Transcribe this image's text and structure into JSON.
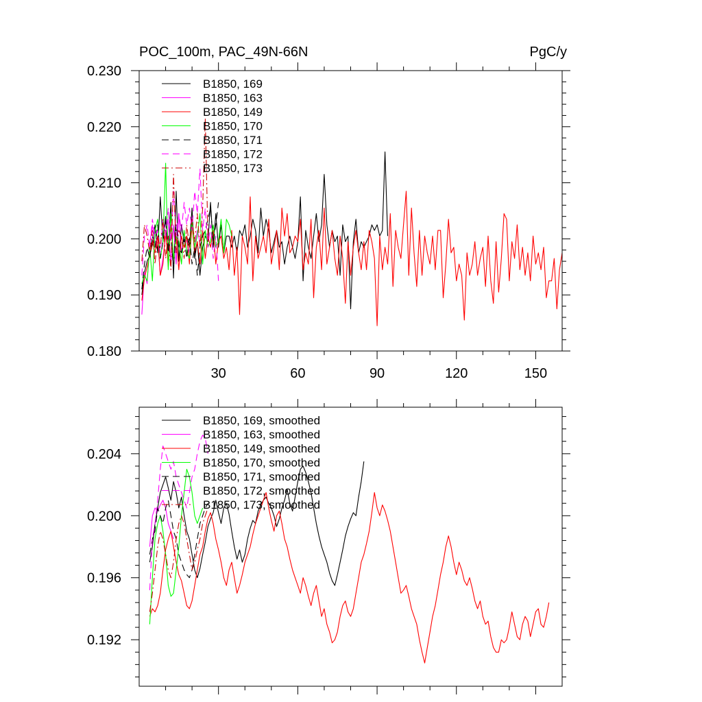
{
  "chart_data": [
    {
      "type": "line",
      "title": "POC_100m, PAC_49N-66N",
      "units": "PgC/y",
      "xlim": [
        0,
        160
      ],
      "ylim": [
        0.18,
        0.23
      ],
      "xticks": [
        30,
        60,
        90,
        120,
        150
      ],
      "yticks": [
        0.18,
        0.19,
        0.2,
        0.21,
        0.22,
        0.23
      ],
      "ytick_labels": [
        "0.180",
        "0.190",
        "0.200",
        "0.210",
        "0.220",
        "0.230"
      ],
      "legend_position": "top-left",
      "series": [
        {
          "name": "B1850, 169",
          "color": "#000000",
          "dash": "solid",
          "x0": 1,
          "values": [
            0.19,
            0.194,
            0.196,
            0.197,
            0.199,
            0.2025,
            0.1975,
            0.2075,
            0.1995,
            0.204,
            0.198,
            0.2065,
            0.193,
            0.2085,
            0.196,
            0.2025,
            0.1995,
            0.2005,
            0.1985,
            0.2055,
            0.1965,
            0.1995,
            0.1935,
            0.1985,
            0.2005,
            0.1995,
            0.2065,
            0.1985,
            0.2045,
            0.1985,
            0.2025,
            0.1975,
            0.2005,
            0.2005,
            0.1985,
            0.2005,
            0.1975,
            0.2015,
            0.2005,
            0.2025,
            0.1985,
            0.2005,
            0.2035,
            0.2015,
            0.1975,
            0.2055,
            0.2005,
            0.2035,
            0.2015,
            0.1975,
            0.1995,
            0.2015,
            0.1985,
            0.1995,
            0.1955,
            0.1985,
            0.2005,
            0.1985,
            0.1965,
            0.1995,
            0.2075,
            0.1925,
            0.2015,
            0.1985,
            0.1965,
            0.2005,
            0.2045,
            0.1995,
            0.2025,
            0.2115,
            0.2025,
            0.1985,
            0.2015,
            0.1995,
            0.2005,
            0.1935,
            0.2025,
            0.1995,
            0.2005,
            0.1875,
            0.1995,
            0.2035,
            0.1975,
            0.1995,
            0.1985,
            0.1995,
            0.2005,
            0.2025,
            0.2015,
            0.2025,
            0.2005,
            0.2015,
            0.2155,
            0.2005
          ]
        },
        {
          "name": "B1850, 163",
          "color": "#ff00ff",
          "dash": "solid",
          "x0": 1,
          "values": [
            0.1865,
            0.194,
            0.192,
            0.199,
            0.2025,
            0.1985,
            0.2005,
            0.1935,
            0.1965,
            0.2005,
            0.2035,
            0.1955,
            0.2025,
            0.1955,
            0.2045,
            0.1975,
            0.2005,
            0.1995,
            0.1975,
            0.2025,
            0.1985,
            0.2015,
            0.1995,
            0.2005
          ]
        },
        {
          "name": "B1850, 149",
          "color": "#ff0000",
          "dash": "solid",
          "x0": 1,
          "values": [
            0.189,
            0.193,
            0.195,
            0.197,
            0.1995,
            0.1975,
            0.2005,
            0.1935,
            0.1955,
            0.2015,
            0.195,
            0.2025,
            0.1965,
            0.2005,
            0.1945,
            0.2005,
            0.1985,
            0.2005,
            0.1955,
            0.2025,
            0.1975,
            0.1995,
            0.1955,
            0.2015,
            0.1965,
            0.2005,
            0.1985,
            0.2015,
            0.1955,
            0.1995,
            0.2005,
            0.1965,
            0.1985,
            0.1945,
            0.2015,
            0.1935,
            0.1985,
            0.1865,
            0.2005,
            0.1985,
            0.1955,
            0.2075,
            0.1925,
            0.2005,
            0.1965,
            0.1985,
            0.2005,
            0.1975,
            0.2035,
            0.1955,
            0.1985,
            0.2015,
            0.1945,
            0.2055,
            0.2005,
            0.2045,
            0.1975,
            0.1985,
            0.2005,
            0.1995,
            0.2035,
            0.1945,
            0.1975,
            0.1955,
            0.2035,
            0.1895,
            0.1985,
            0.2015,
            0.1945,
            0.2055,
            0.1955,
            0.1985,
            0.2015,
            0.1965,
            0.1935,
            0.2005,
            0.1965,
            0.1885,
            0.1995,
            0.1935,
            0.1985,
            0.2015,
            0.1975,
            0.1945,
            0.1995,
            0.1945,
            0.2015,
            0.1995,
            0.1965,
            0.1845,
            0.2005,
            0.1945,
            0.1985,
            0.1955,
            0.2045,
            0.1915,
            0.2015,
            0.1985,
            0.1965,
            0.2025,
            0.2085,
            0.1935,
            0.2055,
            0.1975,
            0.1915,
            0.2015,
            0.1935,
            0.2005,
            0.1975,
            0.1955,
            0.2005,
            0.1945,
            0.2015,
            0.2015,
            0.1895,
            0.1955,
            0.2035,
            0.1975,
            0.1985,
            0.1925,
            0.1955,
            0.1935,
            0.1855,
            0.1975,
            0.1935,
            0.1955,
            0.1995,
            0.1935,
            0.1965,
            0.1985,
            0.1915,
            0.2005,
            0.1925,
            0.1885,
            0.1995,
            0.1905,
            0.1965,
            0.2045,
            0.2035,
            0.1925,
            0.1995,
            0.1965,
            0.2025,
            0.1945,
            0.1985,
            0.1935,
            0.1975,
            0.1925,
            0.2005,
            0.1955,
            0.1975,
            0.1945,
            0.1985,
            0.1895,
            0.1925,
            0.1925,
            0.1965,
            0.1875,
            0.1945,
            0.1975,
            0.1985,
            0.1935,
            0.1965,
            0.2005
          ]
        },
        {
          "name": "B1850, 170",
          "color": "#00ff00",
          "dash": "solid",
          "x0": 1,
          "values": [
            0.192,
            0.1935,
            0.1925,
            0.1985,
            0.1925,
            0.2015,
            0.2035,
            0.1965,
            0.1995,
            0.2135,
            0.1945,
            0.2045,
            0.1965,
            0.2005,
            0.1995,
            0.1955,
            0.2015,
            0.1975,
            0.1965,
            0.2035,
            0.1985,
            0.2005,
            0.2045,
            0.1955,
            0.2015,
            0.1985,
            0.1995,
            0.2025,
            0.1985,
            0.1995,
            0.2035,
            0.1975,
            0.2035,
            0.2025,
            0.2005
          ]
        },
        {
          "name": "B1850, 171",
          "color": "#000000",
          "dash": "dashed",
          "x0": 1,
          "values": [
            0.191,
            0.1955,
            0.1985,
            0.1965,
            0.2005,
            0.1985,
            0.2025,
            0.1965,
            0.1995,
            0.2035,
            0.1975,
            0.2005,
            0.1945,
            0.2025,
            0.1985,
            0.1975,
            0.2005,
            0.1965,
            0.2005,
            0.1955,
            0.1985,
            0.1935,
            0.1985,
            0.2005,
            0.2015,
            0.2035,
            0.2055,
            0.1995,
            0.2025,
            0.2065
          ]
        },
        {
          "name": "B1850, 172",
          "color": "#ff00ff",
          "dash": "dashed",
          "x0": 1,
          "values": [
            0.1935,
            0.2005,
            0.2025,
            0.1985,
            0.2035,
            0.2005,
            0.2015,
            0.1975,
            0.2035,
            0.2005,
            0.2055,
            0.1995,
            0.2085,
            0.2005,
            0.2045,
            0.2015,
            0.2065,
            0.2025,
            0.2055,
            0.2015,
            0.2085,
            0.2045,
            0.2125,
            0.2015,
            0.2055,
            0.1985,
            0.2025,
            0.1965,
            0.2005,
            0.1925
          ]
        },
        {
          "name": "B1850, 173",
          "color": "#cc0000",
          "dash": "dashdot",
          "x0": 1,
          "values": [
            0.196,
            0.2025,
            0.2005,
            0.1975,
            0.2015,
            0.1955,
            0.2005,
            0.1985,
            0.2035,
            0.1965,
            0.2005,
            0.1945,
            0.2115,
            0.1975,
            0.2015,
            0.2005,
            0.1965,
            0.2025,
            0.1985,
            0.2035,
            0.1995,
            0.2045,
            0.1985,
            0.2055,
            0.2215,
            0.2005
          ]
        }
      ]
    },
    {
      "type": "line",
      "title": "",
      "xlim": [
        0,
        160
      ],
      "ylim": [
        0.189,
        0.207
      ],
      "xticks": [
        30,
        60,
        90,
        120,
        150
      ],
      "yticks": [
        0.192,
        0.196,
        0.2,
        0.204
      ],
      "ytick_labels": [
        "0.192",
        "0.196",
        "0.200",
        "0.204"
      ],
      "legend_position": "top-left",
      "series": [
        {
          "name": "B1850, 169, smoothed",
          "color": "#000000",
          "dash": "solid",
          "x0": 4,
          "values": [
            0.197,
            0.198,
            0.1995,
            0.2005,
            0.2015,
            0.202,
            0.2025,
            0.2018,
            0.201,
            0.2022,
            0.2015,
            0.2005,
            0.2012,
            0.2,
            0.199,
            0.1985,
            0.1975,
            0.1965,
            0.196,
            0.1966,
            0.1975,
            0.1983,
            0.1993,
            0.1998,
            0.2002,
            0.201,
            0.2002,
            0.1995,
            0.2005,
            0.2008,
            0.2001,
            0.199,
            0.198,
            0.1972,
            0.1978,
            0.197,
            0.1975,
            0.1985,
            0.1992,
            0.1997,
            0.1995,
            0.2003,
            0.2007,
            0.201,
            0.2012,
            0.2008,
            0.2005,
            0.2,
            0.1993,
            0.1998,
            0.2005,
            0.201,
            0.2017,
            0.2008,
            0.2003,
            0.2012,
            0.2022,
            0.203,
            0.2032,
            0.2028,
            0.2022,
            0.2015,
            0.2005,
            0.1995,
            0.1987,
            0.198,
            0.1975,
            0.197,
            0.1963,
            0.1958,
            0.1955,
            0.1962,
            0.197,
            0.1978,
            0.1987,
            0.1993,
            0.1998,
            0.2002,
            0.2,
            0.2012,
            0.2022,
            0.2035
          ]
        },
        {
          "name": "B1850, 163, smoothed",
          "color": "#ff00ff",
          "dash": "solid",
          "x0": 4,
          "values": [
            0.198,
            0.2,
            0.2005,
            0.2003,
            0.2007,
            0.201,
            0.2005,
            0.1995,
            0.199,
            0.1985
          ]
        },
        {
          "name": "B1850, 149, smoothed",
          "color": "#ff0000",
          "dash": "solid",
          "x0": 4,
          "values": [
            0.1935,
            0.194,
            0.1938,
            0.1942,
            0.195,
            0.1965,
            0.1978,
            0.1985,
            0.199,
            0.198,
            0.197,
            0.1962,
            0.1958,
            0.195,
            0.1942,
            0.194,
            0.1945,
            0.1955,
            0.1965,
            0.1975,
            0.198,
            0.199,
            0.1998,
            0.2002,
            0.1995,
            0.1985,
            0.1978,
            0.197,
            0.196,
            0.1955,
            0.1965,
            0.197,
            0.196,
            0.195,
            0.1955,
            0.1962,
            0.197,
            0.1975,
            0.198,
            0.1988,
            0.1995,
            0.2,
            0.2005,
            0.201,
            0.2015,
            0.2005,
            0.1997,
            0.199,
            0.2,
            0.2003,
            0.1995,
            0.1985,
            0.198,
            0.1972,
            0.1965,
            0.196,
            0.1955,
            0.195,
            0.196,
            0.1955,
            0.1948,
            0.1942,
            0.195,
            0.1955,
            0.1945,
            0.1935,
            0.194,
            0.193,
            0.1925,
            0.1918,
            0.192,
            0.1925,
            0.1935,
            0.1942,
            0.1945,
            0.1938,
            0.1935,
            0.194,
            0.195,
            0.196,
            0.197,
            0.1975,
            0.1982,
            0.199,
            0.2002,
            0.2015,
            0.2005,
            0.2,
            0.2007,
            0.2003,
            0.1997,
            0.199,
            0.198,
            0.197,
            0.196,
            0.195,
            0.1952,
            0.1955,
            0.1948,
            0.194,
            0.1935,
            0.193,
            0.192,
            0.1912,
            0.1905,
            0.1915,
            0.1925,
            0.1935,
            0.1942,
            0.1952,
            0.1962,
            0.197,
            0.198,
            0.1987,
            0.198,
            0.197,
            0.1962,
            0.197,
            0.1965,
            0.1958,
            0.1955,
            0.196,
            0.1953,
            0.1945,
            0.194,
            0.1945,
            0.1935,
            0.193,
            0.1932,
            0.1922,
            0.1915,
            0.1912,
            0.1912,
            0.192,
            0.1918,
            0.192,
            0.1928,
            0.1938,
            0.193,
            0.1922,
            0.192,
            0.193,
            0.1935,
            0.1932,
            0.1922,
            0.193,
            0.1938,
            0.194,
            0.193,
            0.1928,
            0.1935,
            0.1944
          ]
        },
        {
          "name": "B1850, 170, smoothed",
          "color": "#00ff00",
          "dash": "solid",
          "x0": 4,
          "values": [
            0.193,
            0.196,
            0.1985,
            0.1995,
            0.2,
            0.199,
            0.1975,
            0.1955,
            0.1948,
            0.195,
            0.1965,
            0.198,
            0.2,
            0.2015,
            0.203,
            0.2025,
            0.2015,
            0.2,
            0.1995,
            0.2,
            0.2005
          ]
        },
        {
          "name": "B1850, 171, smoothed",
          "color": "#000000",
          "dash": "dashed",
          "x0": 4,
          "values": [
            0.1975,
            0.1985,
            0.199,
            0.2005,
            0.2,
            0.1995,
            0.2005,
            0.201,
            0.2,
            0.199,
            0.1985,
            0.1975,
            0.197,
            0.1965,
            0.1962,
            0.196,
            0.1965,
            0.1975,
            0.1985,
            0.1995,
            0.2,
            0.2005,
            0.2008
          ]
        },
        {
          "name": "B1850, 172, smoothed",
          "color": "#ff00ff",
          "dash": "dashed",
          "x0": 4,
          "values": [
            0.1952,
            0.1985,
            0.1995,
            0.201,
            0.203,
            0.2045,
            0.204,
            0.2035,
            0.203,
            0.2035,
            0.2025,
            0.202,
            0.2015,
            0.201,
            0.2005,
            0.2015,
            0.2025,
            0.203,
            0.204,
            0.2048,
            0.2052,
            0.205,
            0.204
          ]
        },
        {
          "name": "B1850, 173, smoothed",
          "color": "#cc0000",
          "dash": "dashdot",
          "x0": 4,
          "values": [
            0.1938,
            0.195,
            0.1965,
            0.198,
            0.199,
            0.1985,
            0.1975,
            0.1965,
            0.196,
            0.197,
            0.1985,
            0.1995,
            0.2,
            0.1995,
            0.1985,
            0.1975,
            0.1965,
            0.197,
            0.1978,
            0.1985,
            0.1995,
            0.2,
            0.2005
          ]
        }
      ]
    }
  ]
}
